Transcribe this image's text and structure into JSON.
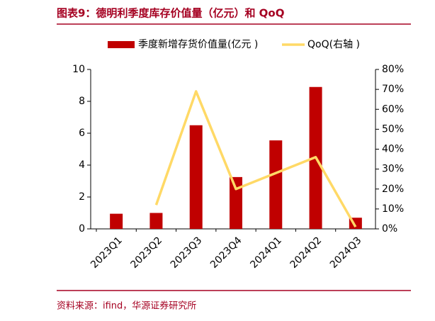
{
  "chart_data": {
    "type": "bar-line",
    "title": "图表9：德明利季度库存价值量（亿元）和 QoQ",
    "source": "资料来源：ifind，华源证券研究所",
    "categories": [
      "2023Q1",
      "2023Q2",
      "2023Q3",
      "2023Q4",
      "2024Q1",
      "2024Q2",
      "2024Q3"
    ],
    "series": [
      {
        "name": "季度新增存货价值量(亿元 )",
        "color": "#c00000",
        "type": "bar",
        "values": [
          0.95,
          1.0,
          6.5,
          3.25,
          5.55,
          8.9,
          0.7
        ]
      },
      {
        "name": "QoQ(右轴 )",
        "color": "#ffd966",
        "type": "line",
        "axis": "y2",
        "values": [
          null,
          12,
          69,
          20,
          28,
          36,
          1
        ]
      }
    ],
    "ylim": [
      0,
      10
    ],
    "yticks": [
      0,
      2,
      4,
      6,
      8,
      10
    ],
    "y2lim": [
      0,
      80
    ],
    "y2ticks": [
      {
        "value": 0,
        "label": "0%"
      },
      {
        "value": 10,
        "label": "10%"
      },
      {
        "value": 20,
        "label": "20%"
      },
      {
        "value": 30,
        "label": "30%"
      },
      {
        "value": 40,
        "label": "40%"
      },
      {
        "value": 50,
        "label": "50%"
      },
      {
        "value": 60,
        "label": "60%"
      },
      {
        "value": 70,
        "label": "70%"
      },
      {
        "value": 80,
        "label": "80%"
      }
    ]
  }
}
